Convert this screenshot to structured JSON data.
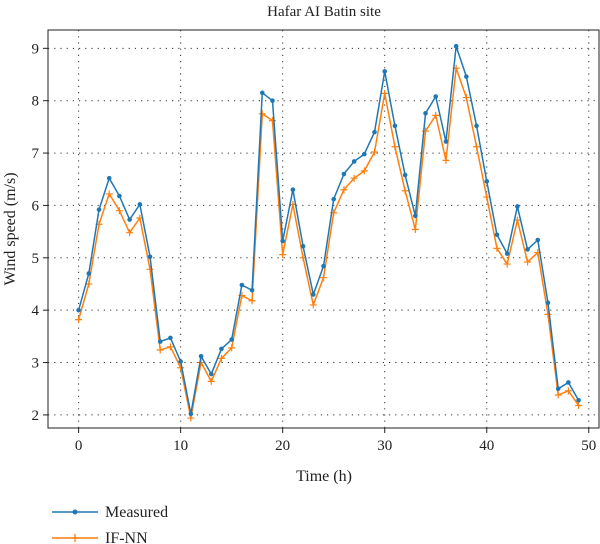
{
  "chart_data": {
    "type": "line",
    "title": "Hafar AI Batin site",
    "xlabel": "Time (h)",
    "ylabel": "Wind speed (m/s)",
    "xlim": [
      -3,
      51
    ],
    "ylim": [
      1.75,
      9.35
    ],
    "x_ticks": [
      0,
      10,
      20,
      30,
      40,
      50
    ],
    "y_ticks": [
      2,
      3,
      4,
      5,
      6,
      7,
      8,
      9
    ],
    "grid": true,
    "legend_position": "bottom-left, below plot",
    "x": [
      0,
      1,
      2,
      3,
      4,
      5,
      6,
      7,
      8,
      9,
      10,
      11,
      12,
      13,
      14,
      15,
      16,
      17,
      18,
      19,
      20,
      21,
      22,
      23,
      24,
      25,
      26,
      27,
      28,
      29,
      30,
      31,
      32,
      33,
      34,
      35,
      36,
      37,
      38,
      39,
      40,
      41,
      42,
      43,
      44,
      45,
      46,
      47,
      48,
      49
    ],
    "series": [
      {
        "name": "Measured",
        "color": "#1f77b4",
        "marker": "dot",
        "values": [
          4.0,
          4.7,
          5.92,
          6.52,
          6.18,
          5.73,
          6.02,
          5.02,
          3.4,
          3.47,
          3.02,
          2.02,
          3.12,
          2.78,
          3.26,
          3.44,
          4.48,
          4.38,
          8.15,
          8.0,
          5.32,
          6.3,
          5.22,
          4.3,
          4.84,
          6.12,
          6.6,
          6.84,
          6.98,
          7.4,
          8.56,
          7.52,
          6.58,
          5.8,
          7.76,
          8.08,
          7.22,
          9.04,
          8.46,
          7.52,
          6.46,
          5.44,
          5.08,
          5.98,
          5.16,
          5.34,
          4.14,
          2.5,
          2.62,
          2.28
        ]
      },
      {
        "name": "IF-NN",
        "color": "#ff7f0e",
        "marker": "plus",
        "values": [
          3.82,
          4.5,
          5.64,
          6.22,
          5.9,
          5.48,
          5.76,
          4.78,
          3.24,
          3.3,
          2.9,
          1.94,
          3.0,
          2.64,
          3.08,
          3.28,
          4.28,
          4.18,
          7.75,
          7.62,
          5.06,
          6.02,
          5.0,
          4.1,
          4.62,
          5.86,
          6.3,
          6.52,
          6.66,
          7.02,
          8.14,
          7.12,
          6.28,
          5.54,
          7.42,
          7.72,
          6.86,
          8.62,
          8.06,
          7.12,
          6.16,
          5.18,
          4.88,
          5.72,
          4.92,
          5.1,
          3.92,
          2.38,
          2.46,
          2.18
        ]
      }
    ]
  }
}
